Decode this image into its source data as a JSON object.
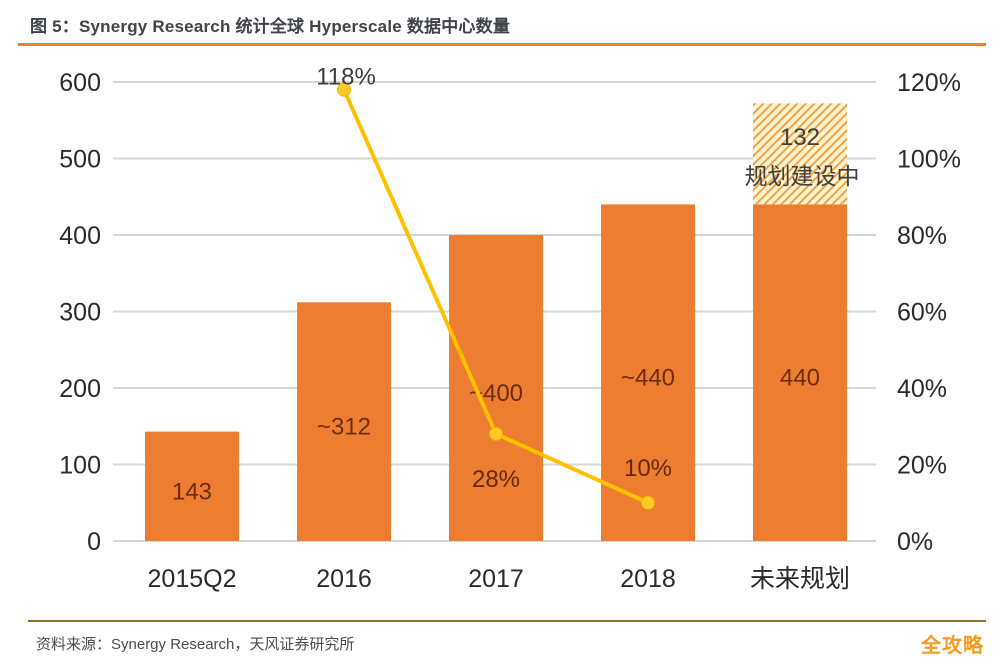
{
  "header": {
    "title": "图 5：Synergy Research 统计全球 Hyperscale 数据中心数量"
  },
  "footer": {
    "source": "资料来源：Synergy Research，天风证券研究所",
    "logo": "全攻略"
  },
  "colors": {
    "bar": "#ED7D31",
    "bar_label": "#6F2D10",
    "line": "#FFC000",
    "line_marker_fill": "#FFC926",
    "line_marker_edge": "#EFB000",
    "line_label_outside": "#3D3D3D",
    "line_label_inside": "#64290E",
    "hatch_bg": "#FEF3CC",
    "hatch_stroke": "#ECA44D",
    "hatch_label": "#3F3F3F",
    "grid": "#D6D6D6",
    "axis_text": "#2B2B2B",
    "title_rule": "#E8822D",
    "footer_rule": "#8C7434",
    "source_text": "#4D4D4D",
    "logo": "#F59B22"
  },
  "chart_data": {
    "type": "bar",
    "subtype": "bar+line combo, dual axis",
    "title": "图 5：Synergy Research 统计全球 Hyperscale 数据中心数量",
    "categories": [
      "2015Q2",
      "2016",
      "2017",
      "2018",
      "未来规划"
    ],
    "series": [
      {
        "name": "bars",
        "type": "bar",
        "axis": "left",
        "values": [
          143,
          312,
          400,
          440,
          440
        ],
        "labels": [
          "143",
          "~312",
          "~400",
          "~440",
          "440"
        ]
      },
      {
        "name": "planned-extra",
        "type": "bar-stacked-hatched",
        "axis": "left",
        "stack_on_category": "未来规划",
        "value": 132,
        "value_label": "132",
        "text_label": "规划建设中"
      },
      {
        "name": "growth-line",
        "type": "line",
        "axis": "right",
        "points": [
          {
            "category": "2016",
            "value": 118,
            "label": "118%"
          },
          {
            "category": "2017",
            "value": 28,
            "label": "28%"
          },
          {
            "category": "2018",
            "value": 10,
            "label": "10%"
          }
        ]
      }
    ],
    "left_axis": {
      "min": 0,
      "max": 600,
      "step": 100,
      "tick_labels": [
        "0",
        "100",
        "200",
        "300",
        "400",
        "500",
        "600"
      ]
    },
    "right_axis": {
      "min": 0,
      "max": 120,
      "step": 20,
      "tick_labels": [
        "0%",
        "20%",
        "40%",
        "60%",
        "80%",
        "100%",
        "120%"
      ]
    },
    "grid": true,
    "legend": "none"
  }
}
